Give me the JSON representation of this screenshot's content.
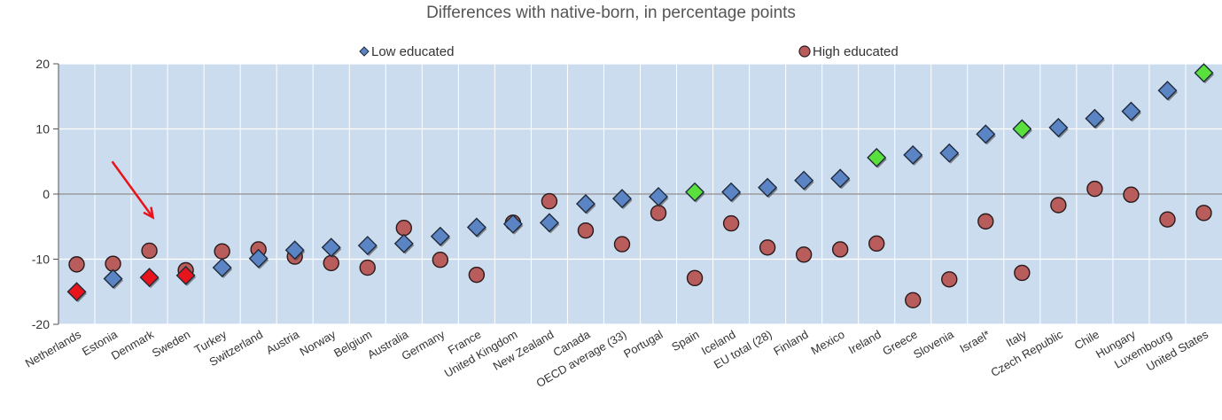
{
  "chart_data": {
    "type": "scatter",
    "subtitle": "Differences with native-born, in percentage points",
    "ylim": [
      -20,
      20
    ],
    "yticks": [
      -20,
      -10,
      0,
      10,
      20
    ],
    "grid": true,
    "legend_position": "top",
    "categories": [
      "Netherlands",
      "Estonia",
      "Denmark",
      "Sweden",
      "Turkey",
      "Switzerland",
      "Austria",
      "Norway",
      "Belgium",
      "Australia",
      "Germany",
      "France",
      "United Kingdom",
      "New Zealand",
      "Canada",
      "OECD average (33)",
      "Portugal",
      "Spain",
      "Iceland",
      "EU total (28)",
      "Finland",
      "Mexico",
      "Ireland",
      "Greece",
      "Slovenia",
      "Israel*",
      "Italy",
      "Czech Republic",
      "Chile",
      "Hungary",
      "Luxembourg",
      "United States"
    ],
    "series": [
      {
        "name": "Low educated",
        "marker": "diamond",
        "color": "#5b84c4",
        "values": [
          -15,
          -13,
          -12.8,
          -12.5,
          -11.3,
          -9.9,
          -8.6,
          -8.2,
          -7.9,
          -7.6,
          -6.5,
          -5.1,
          -4.6,
          -4.4,
          -1.5,
          -0.7,
          -0.4,
          0.3,
          0.3,
          1.0,
          2.1,
          2.4,
          5.6,
          6.0,
          6.3,
          9.2,
          10.0,
          10.2,
          11.6,
          12.7,
          15.9,
          18.6
        ]
      },
      {
        "name": "High educated",
        "marker": "circle",
        "color": "#b85c5c",
        "values": [
          -10.8,
          -10.7,
          -8.7,
          -11.7,
          -8.8,
          -8.5,
          -9.6,
          -10.6,
          -11.3,
          -5.2,
          -10.1,
          -12.4,
          -4.4,
          -1.1,
          -5.6,
          -7.7,
          -2.9,
          -12.9,
          -4.5,
          -8.2,
          -9.3,
          -8.5,
          -7.6,
          -16.3,
          -13.1,
          -4.2,
          -12.1,
          -1.7,
          0.8,
          -0.1,
          -3.9,
          -2.9
        ]
      }
    ],
    "highlights": [
      {
        "category": "Netherlands",
        "series": "Low educated",
        "color": "#e8141b"
      },
      {
        "category": "Denmark",
        "series": "Low educated",
        "color": "#e8141b"
      },
      {
        "category": "Sweden",
        "series": "Low educated",
        "color": "#e8141b"
      },
      {
        "category": "Spain",
        "series": "Low educated",
        "color": "#5ae03c"
      },
      {
        "category": "Ireland",
        "series": "Low educated",
        "color": "#5ae03c"
      },
      {
        "category": "Italy",
        "series": "Low educated",
        "color": "#5ae03c"
      },
      {
        "category": "United States",
        "series": "Low educated",
        "color": "#5ae03c"
      }
    ],
    "annotation": {
      "type": "arrow",
      "color": "#e8141b",
      "target": "Denmark"
    },
    "colors": {
      "plot_bg": "#ccdcef",
      "grid": "#ffffff",
      "axis": "#555555",
      "text": "#333333"
    }
  }
}
